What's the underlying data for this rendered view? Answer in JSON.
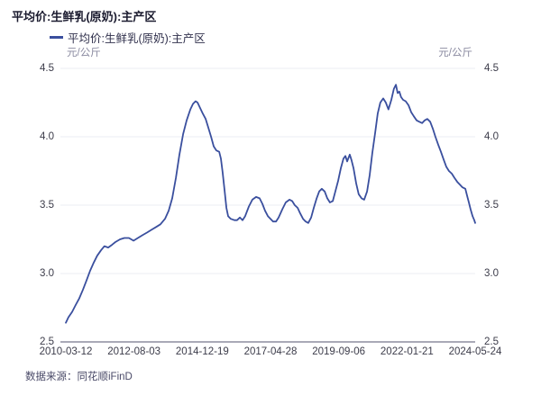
{
  "footer": {
    "source": "数据来源：同花顺iFinD"
  },
  "chart_data": {
    "type": "line",
    "title": "平均价:生鲜乳(原奶):主产区",
    "legend_label": "平均价:生鲜乳(原奶):主产区",
    "y_unit": "元/公斤",
    "ylim": [
      2.5,
      4.5
    ],
    "xlim": [
      2010.19,
      2024.39
    ],
    "grid": "horizontal-light",
    "legend_position": "top-left",
    "y_ticks": [
      4.5,
      4.0,
      3.5,
      3.0,
      2.5
    ],
    "x_tick_labels": [
      "2010-03-12",
      "2012-08-03",
      "2014-12-19",
      "2017-04-28",
      "2019-09-06",
      "2022-01-21",
      "2024-05-24"
    ],
    "colors": {
      "line": "#3a4f9e",
      "grid": "#ebecf3",
      "axis": "#a9a9b7",
      "title": "#1b1b2f",
      "ticks": "#3c3c4a"
    },
    "series": [
      {
        "name": "平均价:生鲜乳(原奶):主产区",
        "color": "#3a4f9e",
        "points": [
          [
            2010.19,
            2.64
          ],
          [
            2010.28,
            2.68
          ],
          [
            2010.41,
            2.72
          ],
          [
            2010.53,
            2.77
          ],
          [
            2010.66,
            2.82
          ],
          [
            2010.78,
            2.88
          ],
          [
            2010.91,
            2.95
          ],
          [
            2011.03,
            3.02
          ],
          [
            2011.16,
            3.08
          ],
          [
            2011.28,
            3.13
          ],
          [
            2011.41,
            3.17
          ],
          [
            2011.53,
            3.2
          ],
          [
            2011.66,
            3.19
          ],
          [
            2011.79,
            3.21
          ],
          [
            2011.91,
            3.23
          ],
          [
            2012.07,
            3.25
          ],
          [
            2012.22,
            3.26
          ],
          [
            2012.38,
            3.26
          ],
          [
            2012.54,
            3.24
          ],
          [
            2012.69,
            3.26
          ],
          [
            2012.85,
            3.28
          ],
          [
            2013.01,
            3.3
          ],
          [
            2013.16,
            3.32
          ],
          [
            2013.32,
            3.34
          ],
          [
            2013.47,
            3.36
          ],
          [
            2013.63,
            3.4
          ],
          [
            2013.76,
            3.46
          ],
          [
            2013.88,
            3.55
          ],
          [
            2014.01,
            3.7
          ],
          [
            2014.13,
            3.87
          ],
          [
            2014.26,
            4.02
          ],
          [
            2014.38,
            4.12
          ],
          [
            2014.51,
            4.2
          ],
          [
            2014.6,
            4.24
          ],
          [
            2014.69,
            4.26
          ],
          [
            2014.76,
            4.25
          ],
          [
            2014.85,
            4.21
          ],
          [
            2014.94,
            4.17
          ],
          [
            2015.04,
            4.13
          ],
          [
            2015.13,
            4.07
          ],
          [
            2015.23,
            4.0
          ],
          [
            2015.32,
            3.93
          ],
          [
            2015.41,
            3.9
          ],
          [
            2015.51,
            3.89
          ],
          [
            2015.57,
            3.84
          ],
          [
            2015.63,
            3.74
          ],
          [
            2015.7,
            3.6
          ],
          [
            2015.76,
            3.48
          ],
          [
            2015.82,
            3.42
          ],
          [
            2015.91,
            3.4
          ],
          [
            2016.04,
            3.39
          ],
          [
            2016.13,
            3.39
          ],
          [
            2016.23,
            3.41
          ],
          [
            2016.32,
            3.39
          ],
          [
            2016.41,
            3.42
          ],
          [
            2016.54,
            3.49
          ],
          [
            2016.66,
            3.54
          ],
          [
            2016.79,
            3.56
          ],
          [
            2016.91,
            3.55
          ],
          [
            2017.01,
            3.51
          ],
          [
            2017.1,
            3.46
          ],
          [
            2017.2,
            3.42
          ],
          [
            2017.29,
            3.4
          ],
          [
            2017.38,
            3.38
          ],
          [
            2017.48,
            3.38
          ],
          [
            2017.57,
            3.41
          ],
          [
            2017.7,
            3.47
          ],
          [
            2017.82,
            3.52
          ],
          [
            2017.95,
            3.54
          ],
          [
            2018.04,
            3.53
          ],
          [
            2018.13,
            3.5
          ],
          [
            2018.23,
            3.48
          ],
          [
            2018.32,
            3.44
          ],
          [
            2018.42,
            3.4
          ],
          [
            2018.51,
            3.38
          ],
          [
            2018.6,
            3.37
          ],
          [
            2018.7,
            3.41
          ],
          [
            2018.79,
            3.48
          ],
          [
            2018.89,
            3.55
          ],
          [
            2018.98,
            3.6
          ],
          [
            2019.07,
            3.62
          ],
          [
            2019.17,
            3.6
          ],
          [
            2019.26,
            3.55
          ],
          [
            2019.35,
            3.52
          ],
          [
            2019.45,
            3.53
          ],
          [
            2019.54,
            3.6
          ],
          [
            2019.64,
            3.68
          ],
          [
            2019.73,
            3.77
          ],
          [
            2019.82,
            3.84
          ],
          [
            2019.89,
            3.86
          ],
          [
            2019.95,
            3.82
          ],
          [
            2020.04,
            3.87
          ],
          [
            2020.1,
            3.83
          ],
          [
            2020.17,
            3.77
          ],
          [
            2020.26,
            3.66
          ],
          [
            2020.35,
            3.58
          ],
          [
            2020.45,
            3.55
          ],
          [
            2020.54,
            3.54
          ],
          [
            2020.64,
            3.6
          ],
          [
            2020.73,
            3.72
          ],
          [
            2020.82,
            3.88
          ],
          [
            2020.92,
            4.03
          ],
          [
            2021.01,
            4.17
          ],
          [
            2021.1,
            4.25
          ],
          [
            2021.2,
            4.28
          ],
          [
            2021.29,
            4.25
          ],
          [
            2021.38,
            4.2
          ],
          [
            2021.48,
            4.27
          ],
          [
            2021.57,
            4.35
          ],
          [
            2021.64,
            4.38
          ],
          [
            2021.7,
            4.32
          ],
          [
            2021.76,
            4.33
          ],
          [
            2021.82,
            4.29
          ],
          [
            2021.89,
            4.27
          ],
          [
            2021.98,
            4.26
          ],
          [
            2022.08,
            4.23
          ],
          [
            2022.17,
            4.18
          ],
          [
            2022.26,
            4.15
          ],
          [
            2022.36,
            4.12
          ],
          [
            2022.45,
            4.11
          ],
          [
            2022.55,
            4.1
          ],
          [
            2022.64,
            4.12
          ],
          [
            2022.73,
            4.13
          ],
          [
            2022.83,
            4.11
          ],
          [
            2022.92,
            4.06
          ],
          [
            2023.01,
            4.0
          ],
          [
            2023.11,
            3.94
          ],
          [
            2023.2,
            3.89
          ],
          [
            2023.3,
            3.83
          ],
          [
            2023.39,
            3.78
          ],
          [
            2023.48,
            3.75
          ],
          [
            2023.58,
            3.73
          ],
          [
            2023.67,
            3.7
          ],
          [
            2023.77,
            3.67
          ],
          [
            2023.86,
            3.65
          ],
          [
            2023.95,
            3.63
          ],
          [
            2024.05,
            3.62
          ],
          [
            2024.11,
            3.57
          ],
          [
            2024.17,
            3.52
          ],
          [
            2024.23,
            3.47
          ],
          [
            2024.3,
            3.42
          ],
          [
            2024.36,
            3.39
          ],
          [
            2024.39,
            3.37
          ]
        ]
      }
    ]
  }
}
